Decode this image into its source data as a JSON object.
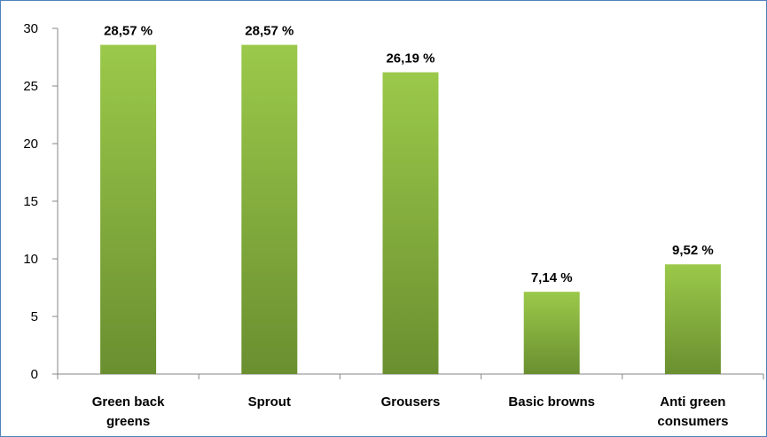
{
  "chart_data": {
    "type": "bar",
    "title": "",
    "xlabel": "",
    "ylabel": "",
    "categories": [
      [
        "Green back",
        "greens"
      ],
      [
        "Sprout"
      ],
      [
        "Grousers"
      ],
      [
        "Basic browns"
      ],
      [
        "Anti green",
        "consumers"
      ]
    ],
    "values": [
      28.57,
      28.57,
      26.19,
      7.14,
      9.52
    ],
    "data_labels": [
      "28,57 %",
      "28,57 %",
      "26,19 %",
      "7,14 %",
      "9,52 %"
    ],
    "ylim": [
      0,
      30
    ],
    "yticks": [
      0,
      5,
      10,
      15,
      20,
      25,
      30
    ],
    "ytick_labels": [
      "0",
      "5",
      "10",
      "15",
      "20",
      "25",
      "30"
    ],
    "grid": false,
    "legend": "none",
    "colors": {
      "bar_top": "#9bc94a",
      "bar_bottom": "#6a8f30",
      "axis": "#868686",
      "frame": "#4f81bd"
    }
  }
}
